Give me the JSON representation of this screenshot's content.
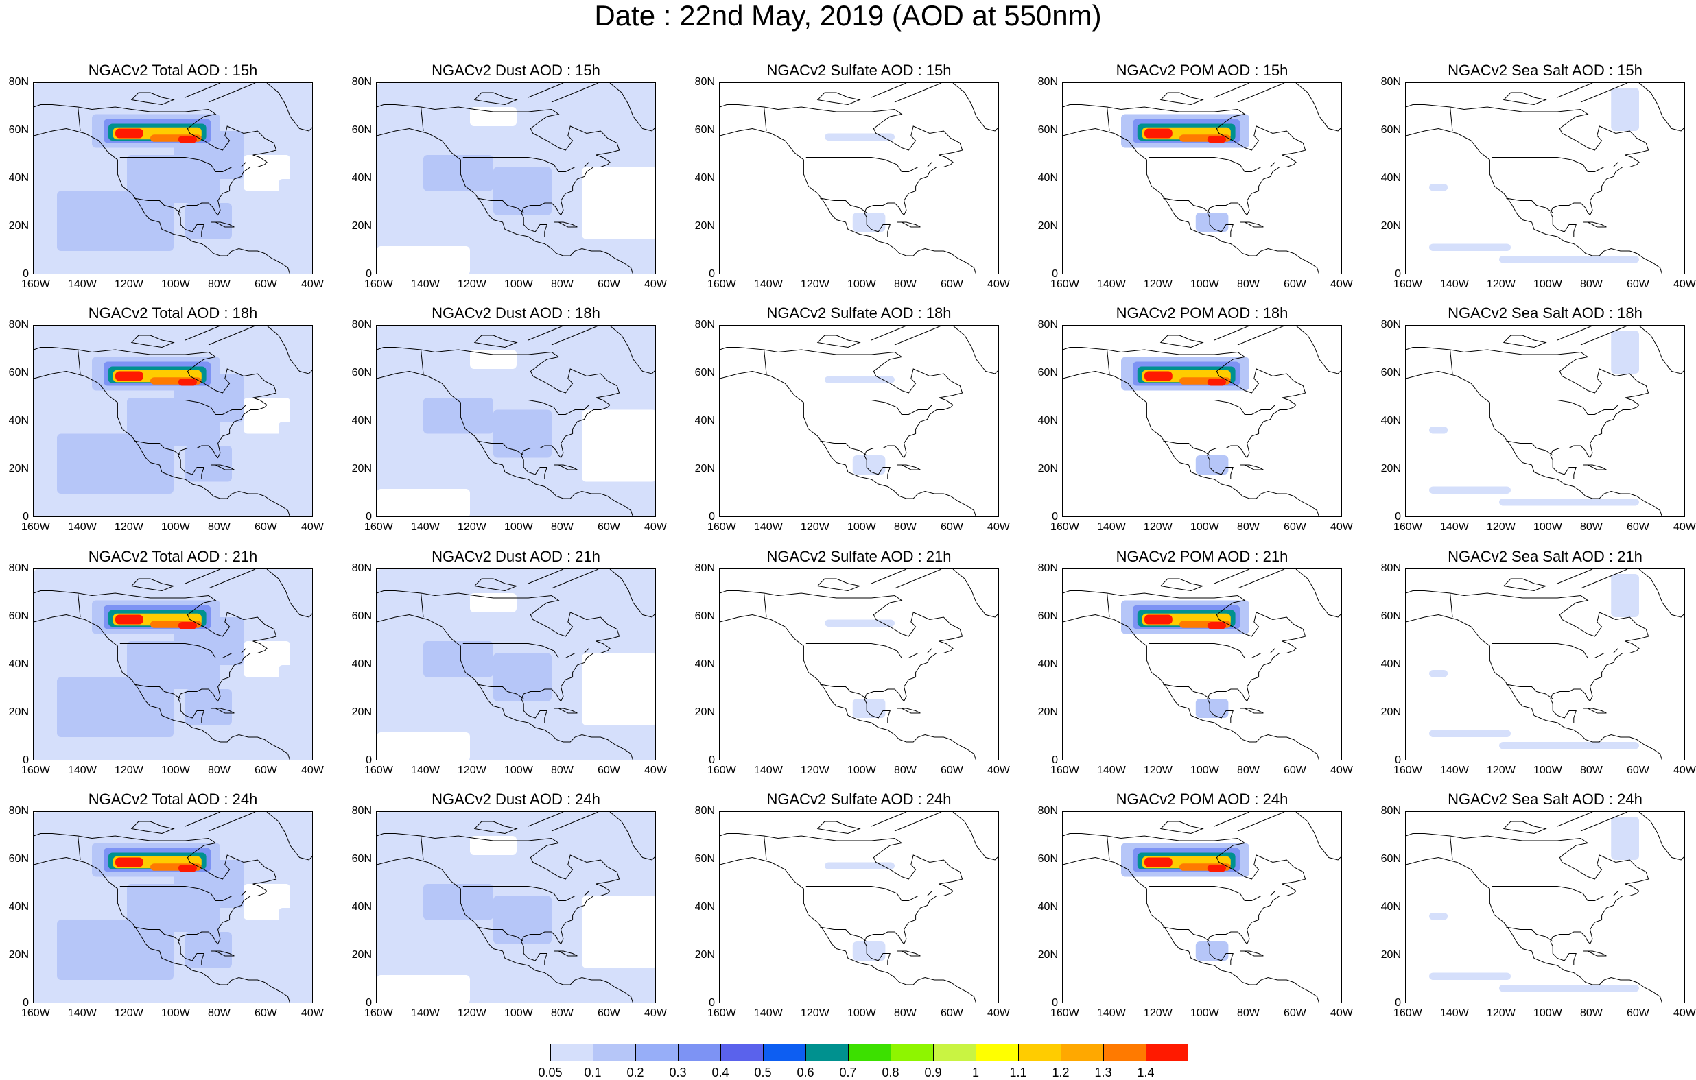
{
  "title": "Date : 22nd May, 2019 (AOD at 550nm)",
  "map_axes": {
    "x_ticks": [
      "160W",
      "140W",
      "120W",
      "100W",
      "80W",
      "60W",
      "40W"
    ],
    "y_ticks": [
      "80N",
      "60N",
      "40N",
      "20N",
      "0"
    ],
    "lon_range": [
      -160,
      -40
    ],
    "lat_range": [
      0,
      80
    ]
  },
  "panels": [
    [
      "NGACv2 Total AOD : 15h",
      "NGACv2 Dust AOD : 15h",
      "NGACv2 Sulfate AOD : 15h",
      "NGACv2 POM AOD : 15h",
      "NGACv2 Sea Salt AOD : 15h"
    ],
    [
      "NGACv2 Total AOD : 18h",
      "NGACv2 Dust AOD : 18h",
      "NGACv2 Sulfate AOD : 18h",
      "NGACv2 POM AOD : 18h",
      "NGACv2 Sea Salt AOD : 18h"
    ],
    [
      "NGACv2 Total AOD : 21h",
      "NGACv2 Dust AOD : 21h",
      "NGACv2 Sulfate AOD : 21h",
      "NGACv2 POM AOD : 21h",
      "NGACv2 Sea Salt AOD : 21h"
    ],
    [
      "NGACv2 Total AOD : 24h",
      "NGACv2 Dust AOD : 24h",
      "NGACv2 Sulfate AOD : 24h",
      "NGACv2 POM AOD : 24h",
      "NGACv2 Sea Salt  AOD : 24h"
    ]
  ],
  "colorbar": {
    "labels": [
      "0.05",
      "0.1",
      "0.2",
      "0.3",
      "0.4",
      "0.5",
      "0.6",
      "0.7",
      "0.8",
      "0.9",
      "1",
      "1.1",
      "1.2",
      "1.3",
      "1.4"
    ],
    "colors": [
      "#ffffff",
      "#d5dffb",
      "#b6c6f8",
      "#97aef8",
      "#7d93f4",
      "#5a62ec",
      "#0d5ef2",
      "#00918f",
      "#3ce000",
      "#8ef500",
      "#c9f442",
      "#ffff00",
      "#ffcc00",
      "#ffa800",
      "#ff7a00",
      "#ff1a00"
    ]
  }
}
